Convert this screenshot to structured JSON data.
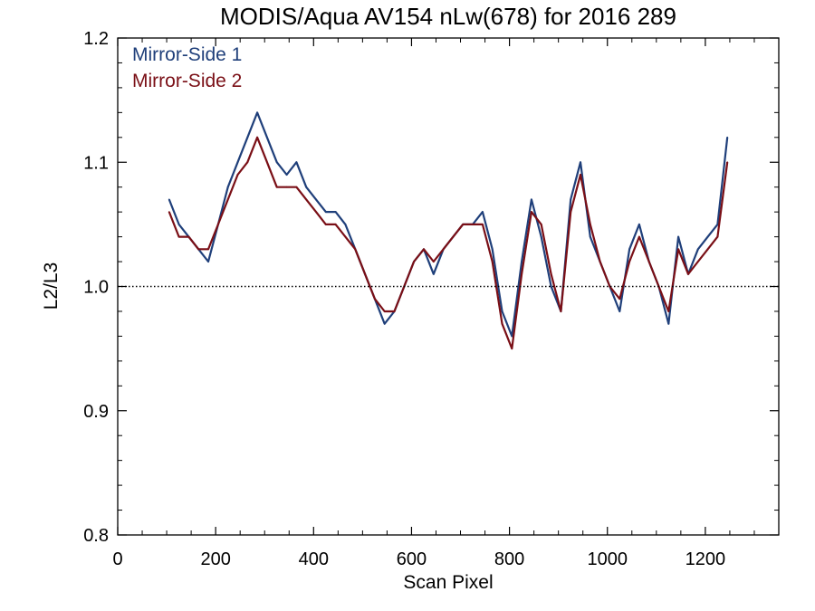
{
  "chart_data": {
    "type": "line",
    "title": "MODIS/Aqua AV154 nLw(678) for 2016 289",
    "xlabel": "Scan Pixel",
    "ylabel": "L2/L3",
    "xlim": [
      0,
      1350
    ],
    "ylim": [
      0.8,
      1.2
    ],
    "x_ticks": [
      0,
      200,
      400,
      600,
      800,
      1000,
      1200
    ],
    "y_ticks": [
      0.8,
      0.9,
      1.0,
      1.1,
      1.2
    ],
    "x_tick_labels": [
      "0",
      "200",
      "400",
      "600",
      "800",
      "1000",
      "1200"
    ],
    "y_tick_labels": [
      "0.8",
      "0.9",
      "1.0",
      "1.1",
      "1.2"
    ],
    "reference_line": {
      "y": 1.0,
      "style": "dotted"
    },
    "grid": false,
    "legend_position": "top-left",
    "colors": {
      "mirror_side_1": "#1f3f7a",
      "mirror_side_2": "#7a0f16",
      "reference": "#000000"
    },
    "x": [
      105,
      125,
      145,
      165,
      185,
      205,
      225,
      245,
      265,
      285,
      305,
      325,
      345,
      365,
      385,
      405,
      425,
      445,
      465,
      485,
      505,
      525,
      545,
      565,
      585,
      605,
      625,
      645,
      665,
      685,
      705,
      725,
      745,
      765,
      785,
      805,
      825,
      845,
      865,
      885,
      905,
      925,
      945,
      965,
      985,
      1005,
      1025,
      1045,
      1065,
      1085,
      1105,
      1125,
      1145,
      1165,
      1185,
      1205,
      1225,
      1245
    ],
    "series": [
      {
        "name": "Mirror-Side 1",
        "values": [
          1.07,
          1.05,
          1.04,
          1.03,
          1.02,
          1.05,
          1.08,
          1.1,
          1.12,
          1.14,
          1.12,
          1.1,
          1.09,
          1.1,
          1.08,
          1.07,
          1.06,
          1.06,
          1.05,
          1.03,
          1.01,
          0.99,
          0.97,
          0.98,
          1.0,
          1.02,
          1.03,
          1.01,
          1.03,
          1.04,
          1.05,
          1.05,
          1.06,
          1.03,
          0.98,
          0.96,
          1.02,
          1.07,
          1.04,
          1.0,
          0.98,
          1.07,
          1.1,
          1.04,
          1.02,
          1.0,
          0.98,
          1.03,
          1.05,
          1.02,
          1.0,
          0.97,
          1.04,
          1.01,
          1.03,
          1.04,
          1.05,
          1.12
        ]
      },
      {
        "name": "Mirror-Side 2",
        "values": [
          1.06,
          1.04,
          1.04,
          1.03,
          1.03,
          1.05,
          1.07,
          1.09,
          1.1,
          1.12,
          1.1,
          1.08,
          1.08,
          1.08,
          1.07,
          1.06,
          1.05,
          1.05,
          1.04,
          1.03,
          1.01,
          0.99,
          0.98,
          0.98,
          1.0,
          1.02,
          1.03,
          1.02,
          1.03,
          1.04,
          1.05,
          1.05,
          1.05,
          1.02,
          0.97,
          0.95,
          1.01,
          1.06,
          1.05,
          1.01,
          0.98,
          1.06,
          1.09,
          1.05,
          1.02,
          1.0,
          0.99,
          1.02,
          1.04,
          1.02,
          1.0,
          0.98,
          1.03,
          1.01,
          1.02,
          1.03,
          1.04,
          1.1
        ]
      }
    ]
  }
}
